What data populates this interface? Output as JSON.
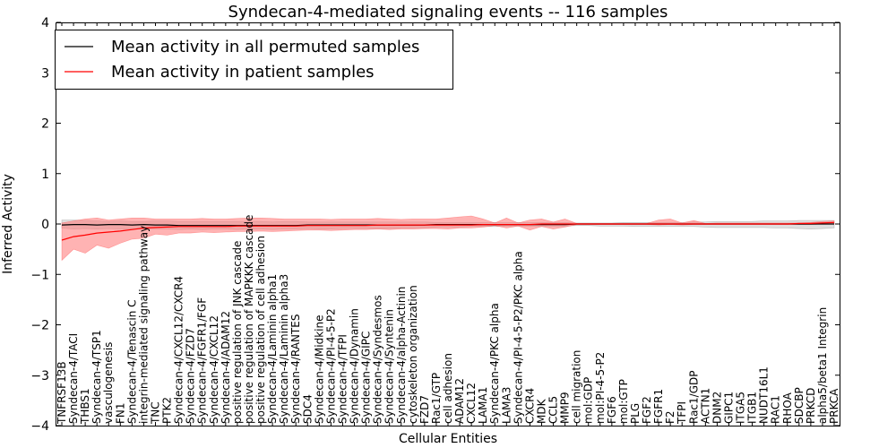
{
  "chart_data": {
    "type": "line",
    "title": "Syndecan-4-mediated signaling events -- 116 samples",
    "xlabel": "Cellular Entities",
    "ylabel": "Inferred Activity",
    "ylim": [
      -4,
      4
    ],
    "yticks": [
      -4,
      -3,
      -2,
      -1,
      0,
      1,
      2,
      3,
      4
    ],
    "grid": false,
    "legend_position": "top-left",
    "colors": {
      "permuted": "#000000",
      "patient": "#ff0000",
      "patient_band": "#ff8080",
      "permuted_band": "#c0c0c0"
    },
    "categories": [
      "TNFRSF13B",
      "Syndecan-4/TACI",
      "THBS1",
      "Syndecan-4/TSP1",
      "vasculogenesis",
      "FN1",
      "Syndecan-4/Tenascin C",
      "integrin-mediated signaling pathway",
      "TNC",
      "PTK2",
      "Syndecan-4/CXCL12/CXCR4",
      "Syndecan-4/FZD7",
      "Syndecan-4/FGFR1/FGF",
      "Syndecan-4/CXCL12",
      "Syndecan-4/ADAM12",
      "positive regulation of JNK cascade",
      "positive regulation of MAPKKK cascade",
      "positive regulation of cell adhesion",
      "Syndecan-4/Laminin alpha1",
      "Syndecan-4/Laminin alpha3",
      "Syndecan-4/RANTES",
      "SDC4",
      "Syndecan-4/Midkine",
      "Syndecan-4/PI-4-5-P2",
      "Syndecan-4/TFPI",
      "Syndecan-4/Dynamin",
      "Syndecan-4/GIPC",
      "Syndecan-4/Syndesmos",
      "Syndecan-4/Syntenin",
      "Syndecan-4/alpha-Actinin",
      "cytoskeleton organization",
      "FZD7",
      "Rac1/GTP",
      "cell adhesion",
      "ADAM12",
      "CXCL12",
      "LAMA1",
      "Syndecan-4/PKC alpha",
      "LAMA3",
      "Syndecan-4/PI-4-5-P2/PKC alpha",
      "CXCR4",
      "MDK",
      "CCL5",
      "MMP9",
      "cell migration",
      "mol:GDP",
      "mol:PI-4-5-P2",
      "FGF6",
      "mol:GTP",
      "PLG",
      "FGF2",
      "FGFR1",
      "F2",
      "TFPI",
      "Rac1/GDP",
      "ACTN1",
      "DNM2",
      "GIPC1",
      "ITGA5",
      "ITGB1",
      "NUDT16L1",
      "RAC1",
      "RHOA",
      "SDCBP",
      "PRKCD",
      "alpha5/beta1 Integrin",
      "PRKCA"
    ],
    "series": [
      {
        "name": "Mean activity in all permuted samples",
        "values": [
          -0.02,
          -0.01,
          -0.01,
          -0.02,
          -0.01,
          -0.01,
          -0.02,
          -0.01,
          -0.02,
          -0.02,
          -0.03,
          -0.03,
          -0.03,
          -0.03,
          -0.03,
          -0.03,
          -0.03,
          -0.03,
          -0.03,
          -0.03,
          -0.03,
          -0.02,
          -0.02,
          -0.02,
          -0.02,
          -0.02,
          -0.02,
          -0.02,
          -0.02,
          -0.02,
          -0.02,
          -0.02,
          -0.01,
          -0.01,
          -0.01,
          -0.01,
          -0.01,
          -0.01,
          -0.01,
          -0.01,
          -0.01,
          -0.01,
          -0.01,
          -0.01,
          0.0,
          0.0,
          0.0,
          0.0,
          0.0,
          0.0,
          0.0,
          0.0,
          0.0,
          0.0,
          0.0,
          0.0,
          0.0,
          0.0,
          0.0,
          0.0,
          0.0,
          0.0,
          0.0,
          0.0,
          0.0,
          0.0,
          0.0
        ],
        "lower": [
          -0.08,
          -0.1,
          -0.09,
          -0.1,
          -0.09,
          -0.1,
          -0.1,
          -0.1,
          -0.1,
          -0.1,
          -0.11,
          -0.1,
          -0.11,
          -0.1,
          -0.1,
          -0.11,
          -0.1,
          -0.1,
          -0.11,
          -0.1,
          -0.1,
          -0.09,
          -0.1,
          -0.1,
          -0.09,
          -0.09,
          -0.09,
          -0.09,
          -0.09,
          -0.08,
          -0.08,
          -0.08,
          -0.06,
          -0.06,
          -0.06,
          -0.05,
          -0.05,
          -0.05,
          -0.04,
          -0.04,
          -0.04,
          -0.04,
          -0.04,
          -0.04,
          -0.03,
          -0.03,
          -0.04,
          -0.04,
          -0.04,
          -0.05,
          -0.05,
          -0.05,
          -0.05,
          -0.05,
          -0.05,
          -0.06,
          -0.07,
          -0.07,
          -0.07,
          -0.07,
          -0.07,
          -0.08,
          -0.08,
          -0.09,
          -0.1,
          -0.09,
          -0.08
        ],
        "upper": [
          0.08,
          0.08,
          0.07,
          0.06,
          0.05,
          0.06,
          0.05,
          0.05,
          0.06,
          0.06,
          0.05,
          0.05,
          0.05,
          0.05,
          0.05,
          0.05,
          0.05,
          0.05,
          0.04,
          0.05,
          0.05,
          0.04,
          0.04,
          0.04,
          0.04,
          0.04,
          0.04,
          0.04,
          0.04,
          0.04,
          0.04,
          0.04,
          0.03,
          0.03,
          0.03,
          0.03,
          0.03,
          0.03,
          0.03,
          0.03,
          0.03,
          0.03,
          0.03,
          0.03,
          0.02,
          0.02,
          0.02,
          0.02,
          0.03,
          0.03,
          0.03,
          0.03,
          0.03,
          0.03,
          0.04,
          0.04,
          0.05,
          0.05,
          0.05,
          0.05,
          0.06,
          0.06,
          0.06,
          0.07,
          0.07,
          0.07,
          0.07
        ]
      },
      {
        "name": "Mean activity in patient samples",
        "values": [
          -0.32,
          -0.25,
          -0.22,
          -0.18,
          -0.16,
          -0.14,
          -0.11,
          -0.08,
          -0.07,
          -0.06,
          -0.05,
          -0.05,
          -0.05,
          -0.05,
          -0.05,
          -0.04,
          -0.04,
          -0.04,
          -0.04,
          -0.04,
          -0.04,
          -0.03,
          -0.03,
          -0.03,
          -0.03,
          -0.03,
          -0.03,
          -0.02,
          -0.02,
          -0.02,
          -0.02,
          -0.02,
          -0.02,
          -0.02,
          -0.02,
          -0.02,
          -0.01,
          -0.01,
          -0.01,
          -0.01,
          -0.01,
          0.0,
          0.0,
          0.0,
          0.0,
          0.0,
          0.0,
          0.0,
          0.0,
          0.0,
          0.0,
          0.0,
          0.0,
          0.0,
          0.0,
          0.0,
          0.0,
          0.0,
          0.0,
          0.0,
          0.0,
          0.0,
          0.0,
          0.01,
          0.01,
          0.02,
          0.03
        ],
        "lower": [
          -0.72,
          -0.5,
          -0.58,
          -0.42,
          -0.48,
          -0.38,
          -0.3,
          -0.28,
          -0.2,
          -0.22,
          -0.18,
          -0.18,
          -0.16,
          -0.17,
          -0.16,
          -0.15,
          -0.15,
          -0.14,
          -0.15,
          -0.14,
          -0.13,
          -0.12,
          -0.12,
          -0.13,
          -0.12,
          -0.11,
          -0.11,
          -0.1,
          -0.11,
          -0.1,
          -0.1,
          -0.09,
          -0.09,
          -0.1,
          -0.08,
          -0.08,
          -0.06,
          -0.03,
          -0.08,
          -0.04,
          -0.12,
          -0.05,
          -0.1,
          -0.06,
          -0.01,
          -0.01,
          -0.01,
          -0.01,
          -0.01,
          -0.01,
          -0.01,
          -0.02,
          -0.01,
          -0.02,
          -0.01,
          -0.01,
          -0.01,
          -0.01,
          -0.01,
          -0.01,
          -0.01,
          -0.01,
          -0.01,
          -0.01,
          -0.01,
          0.0,
          0.0
        ],
        "upper": [
          0.02,
          0.06,
          0.1,
          0.12,
          0.08,
          0.1,
          0.12,
          0.12,
          0.1,
          0.1,
          0.1,
          0.1,
          0.11,
          0.1,
          0.1,
          0.11,
          0.12,
          0.12,
          0.11,
          0.1,
          0.1,
          0.1,
          0.1,
          0.09,
          0.1,
          0.1,
          0.1,
          0.11,
          0.1,
          0.09,
          0.1,
          0.1,
          0.1,
          0.12,
          0.14,
          0.16,
          0.1,
          0.02,
          0.12,
          0.02,
          0.08,
          0.1,
          0.04,
          0.1,
          0.01,
          0.01,
          0.01,
          0.01,
          0.01,
          0.01,
          0.01,
          0.08,
          0.1,
          0.02,
          0.07,
          0.01,
          0.02,
          0.02,
          0.02,
          0.02,
          0.02,
          0.02,
          0.02,
          0.02,
          0.03,
          0.05,
          0.06
        ]
      }
    ]
  }
}
